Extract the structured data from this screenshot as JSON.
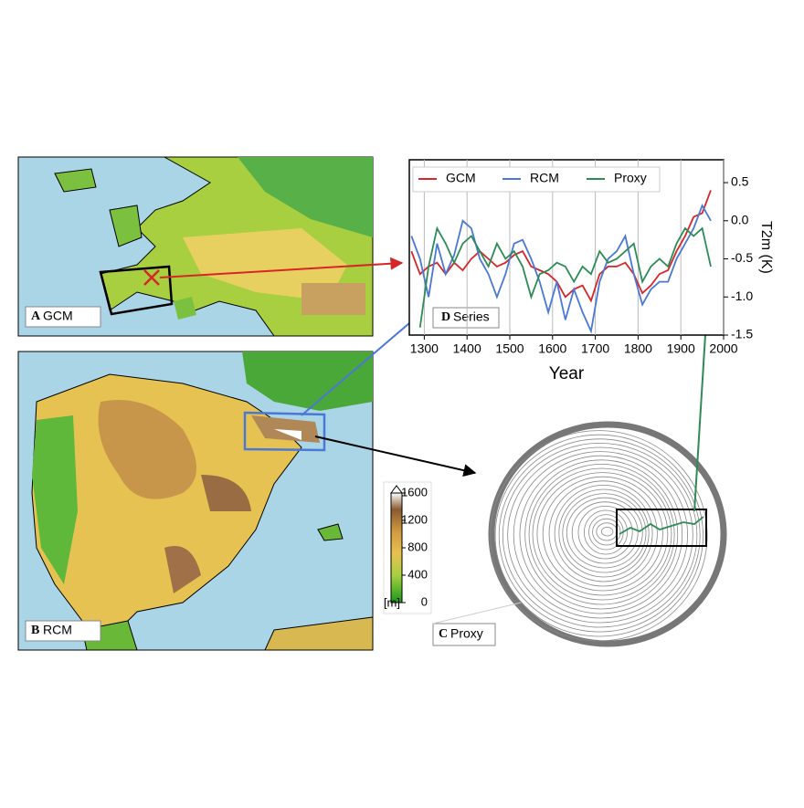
{
  "chart_data": {
    "type": "line",
    "x_label": "Year",
    "y_label": "T2m (K)",
    "panel_letter": "D",
    "panel_label": "Series",
    "x": [
      1270,
      1290,
      1310,
      1330,
      1350,
      1370,
      1390,
      1410,
      1430,
      1450,
      1470,
      1490,
      1510,
      1530,
      1550,
      1570,
      1590,
      1610,
      1630,
      1650,
      1670,
      1690,
      1710,
      1730,
      1750,
      1770,
      1790,
      1810,
      1830,
      1850,
      1870,
      1890,
      1910,
      1930,
      1950,
      1970
    ],
    "series": [
      {
        "name": "GCM",
        "color": "#d62728",
        "values": [
          -0.4,
          -0.7,
          -0.6,
          -0.55,
          -0.7,
          -0.55,
          -0.65,
          -0.5,
          -0.4,
          -0.5,
          -0.6,
          -0.55,
          -0.45,
          -0.4,
          -0.6,
          -0.65,
          -0.7,
          -0.8,
          -1.0,
          -0.9,
          -0.85,
          -1.05,
          -0.7,
          -0.6,
          -0.6,
          -0.55,
          -0.7,
          -0.95,
          -0.85,
          -0.7,
          -0.65,
          -0.4,
          -0.2,
          0.05,
          0.1,
          0.4
        ]
      },
      {
        "name": "RCM",
        "color": "#4a78d4",
        "values": [
          -0.2,
          -0.5,
          -1.0,
          -0.3,
          -0.7,
          -0.45,
          0.0,
          -0.1,
          -0.5,
          -0.7,
          -1.0,
          -0.7,
          -0.3,
          -0.25,
          -0.5,
          -0.8,
          -1.2,
          -0.8,
          -1.3,
          -0.9,
          -1.2,
          -1.45,
          -0.8,
          -0.5,
          -0.4,
          -0.2,
          -0.7,
          -1.1,
          -0.9,
          -0.8,
          -0.8,
          -0.5,
          -0.3,
          -0.1,
          0.2,
          0.0
        ]
      },
      {
        "name": "Proxy",
        "color": "#2e8b57",
        "values": [
          null,
          -1.4,
          -0.6,
          -0.1,
          -0.3,
          -0.55,
          -0.3,
          -0.2,
          -0.4,
          -0.6,
          -0.3,
          -0.5,
          -0.4,
          -0.6,
          -1.0,
          -0.7,
          -0.65,
          -0.55,
          -0.6,
          -0.8,
          -0.6,
          -0.7,
          -0.4,
          -0.55,
          -0.5,
          -0.4,
          -0.3,
          -0.8,
          -0.6,
          -0.5,
          -0.6,
          -0.3,
          -0.1,
          -0.2,
          -0.1,
          -0.6
        ]
      }
    ],
    "xlim": [
      1265,
      2000
    ],
    "xticks": [
      1300,
      1400,
      1500,
      1600,
      1700,
      1800,
      1900,
      2000
    ],
    "ylim": [
      -1.5,
      0.8
    ],
    "yticks": [
      -1.5,
      {
        "value": -1.0,
        "label": "-1.0"
      },
      -0.5,
      {
        "value": 0,
        "label": "0.0"
      },
      0.5
    ],
    "grid": "x",
    "legend": "top-left"
  },
  "panels": [
    {
      "letter": "A",
      "label": "GCM"
    },
    {
      "letter": "B",
      "label": "RCM"
    },
    {
      "letter": "C",
      "label": "Proxy"
    }
  ],
  "colorbar": {
    "unit": "[m]",
    "lim": [
      0,
      1600
    ],
    "ticks": [
      0,
      400,
      800,
      1200,
      1600
    ]
  }
}
